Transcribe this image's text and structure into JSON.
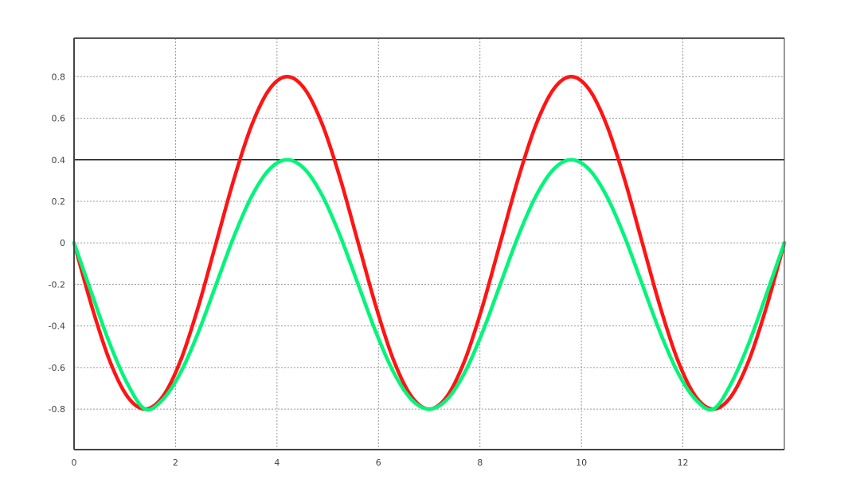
{
  "chart_data": {
    "type": "line",
    "title": "",
    "xlabel": "",
    "ylabel": "",
    "xlim": [
      0,
      14
    ],
    "ylim": [
      -0.995,
      0.985
    ],
    "grid": true,
    "x_ticks": [
      0,
      2,
      4,
      6,
      8,
      10,
      12
    ],
    "x_tick_labels": [
      "0",
      "2",
      "4",
      "6",
      "8",
      "10",
      "12"
    ],
    "y_ticks": [
      0.8,
      0.6,
      0.4,
      0.2,
      0,
      -0.2,
      -0.4,
      -0.6,
      -0.8
    ],
    "y_tick_labels": [
      "0.8",
      "0.6",
      "0.4",
      "0.2",
      "0",
      "-0.2",
      "-0.4",
      "-0.6",
      "-0.8"
    ],
    "reference_line": {
      "y": 0.4,
      "color": "#222222"
    },
    "x": [
      0,
      0.35,
      0.7,
      1.05,
      1.4,
      1.75,
      2.1,
      2.45,
      2.8,
      3.15,
      3.5,
      3.85,
      4.2,
      4.55,
      4.9,
      5.25,
      5.6,
      5.95,
      6.3,
      6.65,
      7.0,
      7.35,
      7.7,
      8.05,
      8.4,
      8.75,
      9.1,
      9.45,
      9.8,
      10.15,
      10.5,
      10.85,
      11.2,
      11.55,
      11.9,
      12.25,
      12.6,
      12.95,
      13.3,
      13.65,
      14.0
    ],
    "series": [
      {
        "color": "#ff1414",
        "values": [
          0,
          -0.306,
          -0.566,
          -0.739,
          -0.8,
          -0.739,
          -0.566,
          -0.306,
          0,
          0.306,
          0.566,
          0.739,
          0.8,
          0.739,
          0.566,
          0.306,
          0,
          -0.306,
          -0.566,
          -0.739,
          -0.8,
          -0.739,
          -0.566,
          -0.306,
          0,
          0.306,
          0.566,
          0.739,
          0.8,
          0.739,
          0.566,
          0.306,
          0,
          -0.306,
          -0.566,
          -0.739,
          -0.8,
          -0.739,
          -0.566,
          -0.306,
          0
        ]
      },
      {
        "color": "#00f57a",
        "values": [
          0,
          -0.245,
          -0.483,
          -0.677,
          -0.8,
          -0.754,
          -0.624,
          -0.43,
          -0.2,
          0.03,
          0.224,
          0.354,
          0.4,
          0.354,
          0.224,
          0.03,
          -0.2,
          -0.43,
          -0.624,
          -0.754,
          -0.8,
          -0.754,
          -0.624,
          -0.43,
          -0.2,
          0.03,
          0.224,
          0.354,
          0.4,
          0.354,
          0.224,
          0.03,
          -0.2,
          -0.43,
          -0.624,
          -0.754,
          -0.8,
          -0.677,
          -0.483,
          -0.245,
          0
        ]
      }
    ]
  }
}
